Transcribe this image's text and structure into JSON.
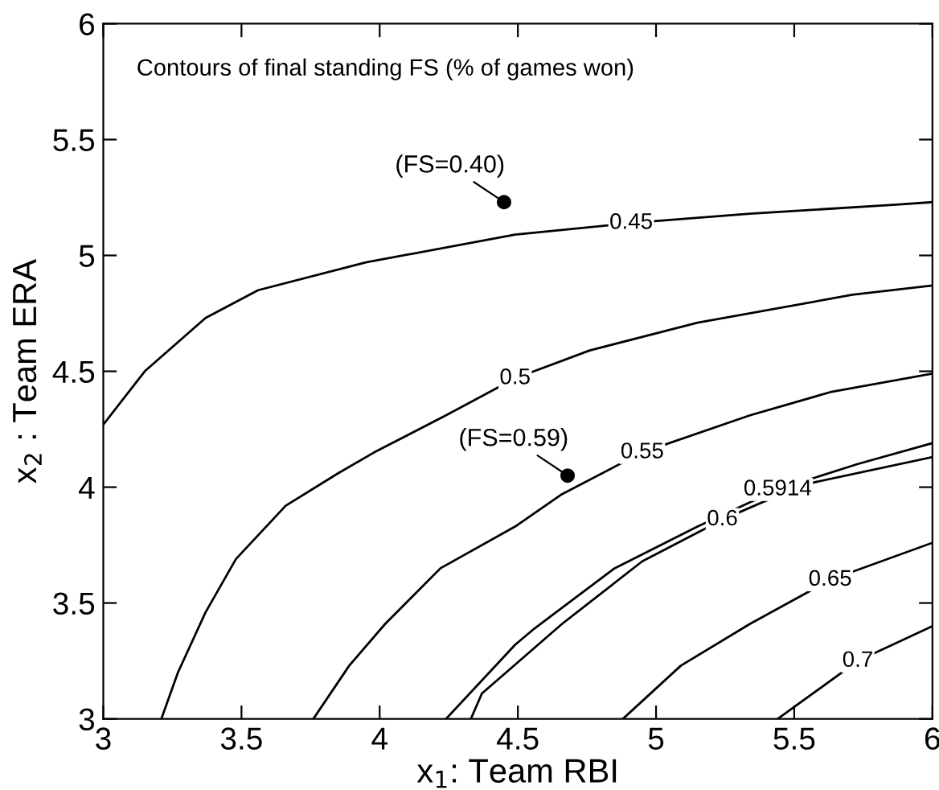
{
  "chart_data": {
    "type": "line",
    "xlabel": "x$_{1}$: Team RBI",
    "ylabel": "x$_{2}$ : Team ERA",
    "xlim": [
      3,
      6
    ],
    "ylim": [
      3,
      6
    ],
    "xticks": [
      3,
      3.5,
      4,
      4.5,
      5,
      5.5,
      6
    ],
    "yticks": [
      3,
      3.5,
      4,
      4.5,
      5,
      5.5,
      6
    ],
    "grid": false,
    "legend": false,
    "marker": "none",
    "line_style": "solid",
    "series": [
      {
        "name": "0.45",
        "color": "#000000",
        "x": [
          3,
          3.15,
          3.37,
          3.56,
          3.95,
          4.49,
          4.91,
          5.34,
          5.88,
          6
        ],
        "values": [
          4.27,
          4.5,
          4.73,
          4.85,
          4.97,
          5.09,
          5.14,
          5.18,
          5.22,
          5.23
        ]
      },
      {
        "name": "0.5",
        "color": "#000000",
        "x": [
          3.21,
          3.27,
          3.37,
          3.48,
          3.66,
          3.85,
          3.98,
          4.24,
          4.49,
          4.76,
          5.15,
          5.71,
          6
        ],
        "values": [
          3.0,
          3.2,
          3.46,
          3.69,
          3.92,
          4.06,
          4.15,
          4.31,
          4.47,
          4.59,
          4.71,
          4.83,
          4.87
        ]
      },
      {
        "name": "0.55",
        "color": "#000000",
        "x": [
          3.76,
          3.89,
          4.02,
          4.22,
          4.49,
          4.66,
          4.95,
          5.34,
          5.63,
          6
        ],
        "values": [
          3.0,
          3.23,
          3.41,
          3.65,
          3.83,
          3.97,
          4.15,
          4.31,
          4.41,
          4.49
        ]
      },
      {
        "name": "0.5914",
        "color": "#000000",
        "x": [
          4.24,
          4.49,
          4.56,
          4.85,
          5.15,
          5.44,
          5.73,
          6
        ],
        "values": [
          3.0,
          3.32,
          3.39,
          3.65,
          3.83,
          3.99,
          4.1,
          4.19
        ]
      },
      {
        "name": "0.6",
        "color": "#000000",
        "x": [
          4.33,
          4.37,
          4.66,
          4.95,
          5.24,
          5.53,
          6
        ],
        "values": [
          3.0,
          3.11,
          3.41,
          3.68,
          3.86,
          4.01,
          4.13
        ]
      },
      {
        "name": "0.65",
        "color": "#000000",
        "x": [
          4.88,
          5.09,
          5.34,
          5.63,
          6
        ],
        "values": [
          3.0,
          3.23,
          3.41,
          3.6,
          3.76
        ]
      },
      {
        "name": "0.7",
        "color": "#000000",
        "x": [
          5.44,
          5.73,
          6
        ],
        "values": [
          3.0,
          3.25,
          3.4
        ]
      },
      {
        "type": "scatter",
        "marker": "circle",
        "color": "#000000",
        "x": [
          4.45,
          4.68
        ],
        "values": [
          5.23,
          4.05
        ]
      }
    ],
    "annotations": [
      "Contours of final standing FS (% of games won)",
      {
        "text": "(FS=0.40)",
        "x": 4.45,
        "y": 5.23
      },
      {
        "text": "(FS=0.59)",
        "x": 4.68,
        "y": 4.05
      }
    ]
  }
}
